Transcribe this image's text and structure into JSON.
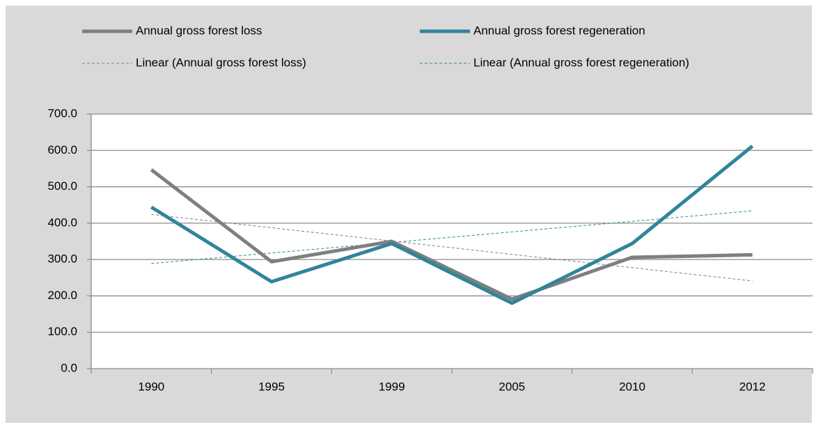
{
  "chart_data": {
    "type": "line",
    "categories": [
      "1990",
      "1995",
      "1999",
      "2005",
      "2010",
      "2012"
    ],
    "series": [
      {
        "name": "Annual gross forest loss",
        "color": "#7f7f7f",
        "values": [
          547,
          294,
          350,
          191,
          306,
          313
        ]
      },
      {
        "name": "Annual gross forest regeneration",
        "color": "#31849b",
        "values": [
          444,
          239,
          344,
          180,
          344,
          612
        ]
      },
      {
        "name": "Linear (Annual gross forest loss)",
        "color": "#7f7f7f",
        "dashed": true,
        "values": [
          424,
          387.4,
          350.8,
          314.2,
          277.6,
          241
        ]
      },
      {
        "name": "Linear (Annual gross forest regeneration)",
        "color": "#31849b",
        "dashed": true,
        "values": [
          289,
          318,
          347,
          376,
          405,
          434
        ]
      }
    ],
    "ylim": [
      0,
      700
    ],
    "yticks": [
      {
        "value": 0,
        "label": "0.0"
      },
      {
        "value": 100,
        "label": "100.0"
      },
      {
        "value": 200,
        "label": "200.0"
      },
      {
        "value": 300,
        "label": "300.0"
      },
      {
        "value": 400,
        "label": "400.0"
      },
      {
        "value": 500,
        "label": "500.0"
      },
      {
        "value": 600,
        "label": "600.0"
      },
      {
        "value": 700,
        "label": "700.0"
      }
    ],
    "grid": true
  }
}
